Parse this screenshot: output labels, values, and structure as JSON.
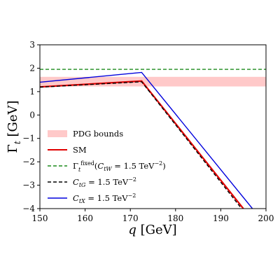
{
  "chart_data": {
    "type": "line",
    "xlabel": "q [GeV]",
    "ylabel": "Γ_t [GeV]",
    "xlim": [
      150,
      200
    ],
    "ylim": [
      -4,
      3
    ],
    "xticks": [
      150,
      160,
      170,
      180,
      190,
      200
    ],
    "yticks": [
      -4,
      -3,
      -2,
      -1,
      0,
      1,
      2,
      3
    ],
    "grid": false,
    "legend_position": "lower-left",
    "band": {
      "name": "PDG bounds",
      "y_range": [
        1.22,
        1.63
      ],
      "color": "#ffc9c9"
    },
    "series": [
      {
        "name": "SM",
        "color": "#e00000",
        "dash": "solid",
        "x": [
          150,
          172.5,
          195
        ],
        "y": [
          1.2,
          1.45,
          -4.0
        ]
      },
      {
        "name": "Γ_t^fixed(C_tW = 1.5 TeV^-2)",
        "color": "#1a8a1a",
        "dash": "dashed",
        "x": [
          150,
          200
        ],
        "y": [
          1.95,
          1.95
        ]
      },
      {
        "name": "C_tG = 1.5 TeV^-2",
        "color": "#000000",
        "dash": "dashed",
        "x": [
          150,
          172.5,
          194.6
        ],
        "y": [
          1.19,
          1.42,
          -4.0
        ]
      },
      {
        "name": "C_tX = 1.5 TeV^-2",
        "color": "#0000dd",
        "dash": "solid",
        "x": [
          150,
          172.5,
          197
        ],
        "y": [
          1.4,
          1.82,
          -4.0
        ]
      }
    ]
  }
}
